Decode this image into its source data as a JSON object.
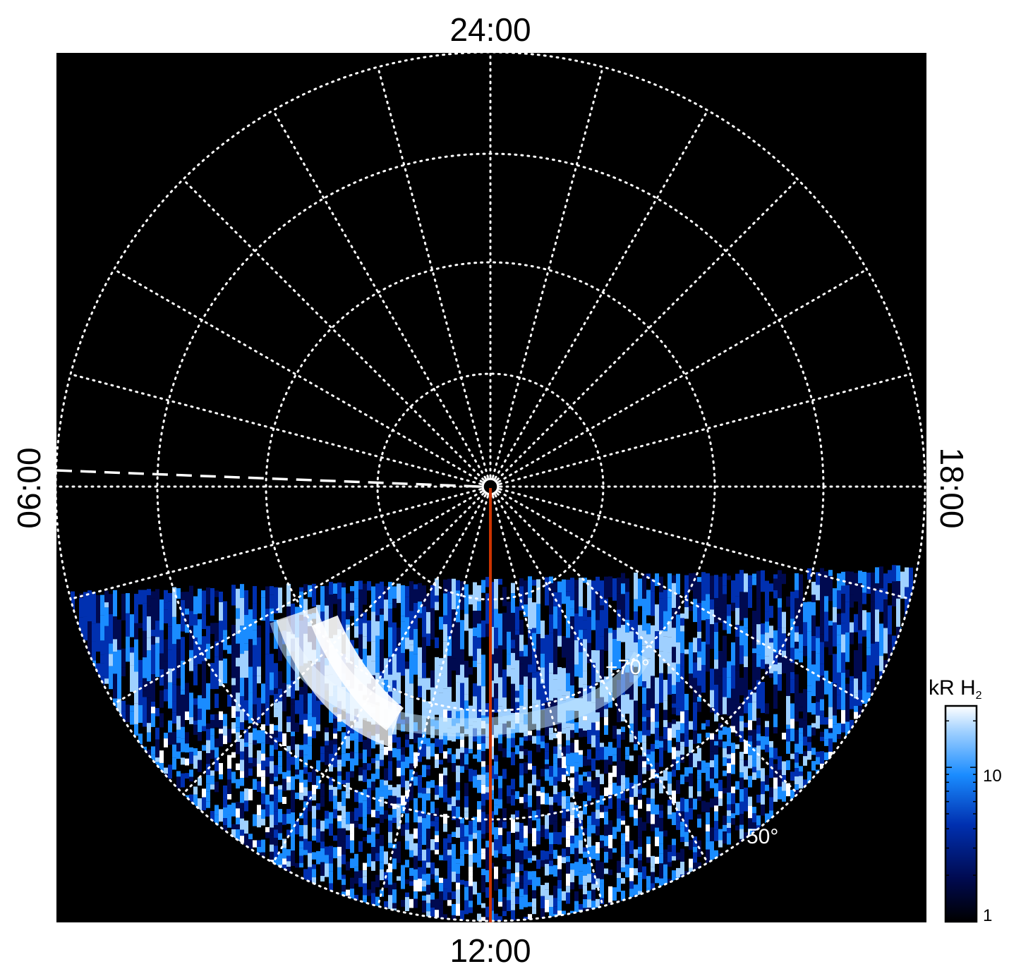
{
  "map": {
    "projection": "polar",
    "background": "#000000",
    "local_time_labels": {
      "top": "24:00",
      "bottom": "12:00",
      "left": "06:00",
      "right": "18:00"
    },
    "latitude_labels": [
      "+70°",
      "50°"
    ],
    "grid": {
      "style": "dotted",
      "color": "#ffffff"
    },
    "meridian_line_color": "#cc3300",
    "dashed_line_color": "#ffffff"
  },
  "colorbar": {
    "title_main": "kR H",
    "title_sub": "2",
    "ticks": [
      "10",
      "1"
    ],
    "scale": "log",
    "range": [
      1,
      25
    ],
    "colors": [
      "#000000",
      "#000a50",
      "#0030b0",
      "#1a8cff",
      "#9fd0ff",
      "#ffffff"
    ]
  }
}
